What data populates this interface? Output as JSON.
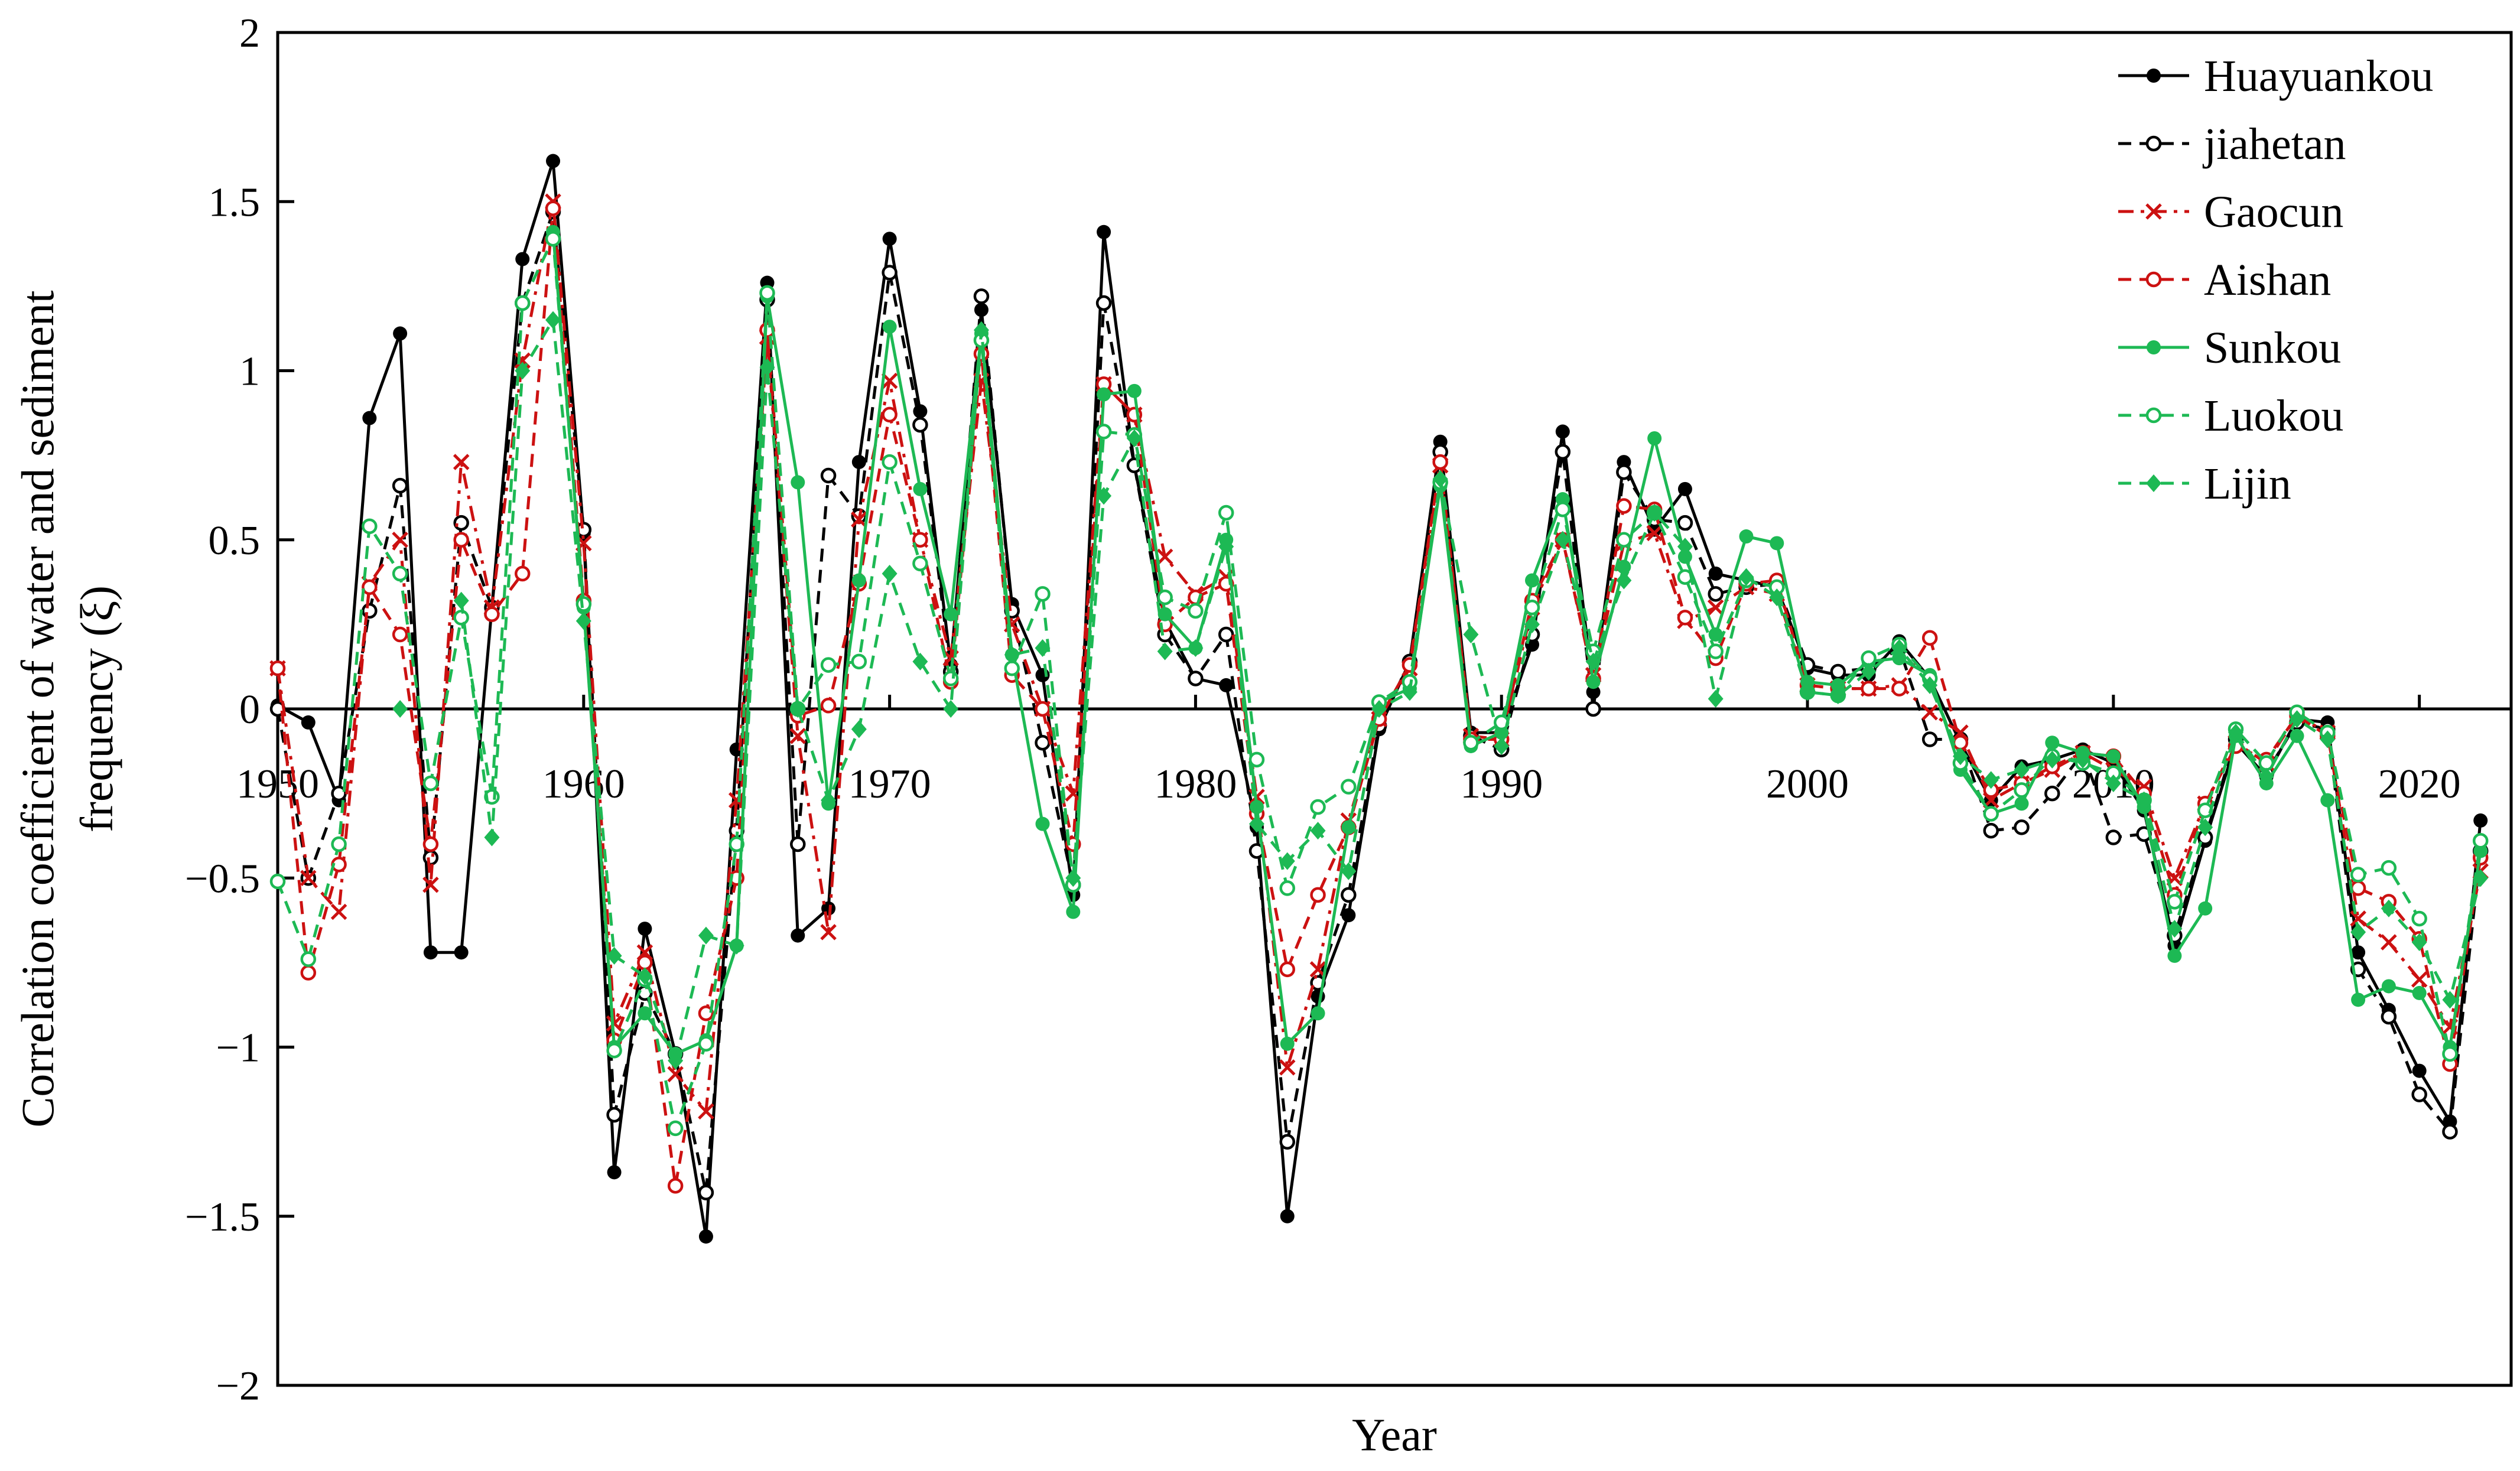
{
  "chart_data": {
    "type": "line",
    "xlabel": "Year",
    "ylabel": "Correlation coefficient of water and sediment frequency (ξ)",
    "xlim": [
      1950,
      2023
    ],
    "ylim": [
      -2,
      2
    ],
    "xticks": [
      "1950",
      "1960",
      "1970",
      "1980",
      "1990",
      "2000",
      "2010",
      "2020"
    ],
    "yticks": [
      "2",
      "1.5",
      "1",
      "0.5",
      "0",
      "−0.5",
      "−1",
      "−1.5",
      "−2"
    ],
    "legend_position": "top-right",
    "grid": false,
    "x": [
      1950,
      1951,
      1952,
      1953,
      1954,
      1955,
      1956,
      1957,
      1958,
      1959,
      1960,
      1961,
      1962,
      1963,
      1964,
      1965,
      1966,
      1967,
      1968,
      1969,
      1970,
      1971,
      1972,
      1973,
      1974,
      1975,
      1976,
      1977,
      1978,
      1979,
      1980,
      1981,
      1982,
      1983,
      1984,
      1985,
      1986,
      1987,
      1988,
      1989,
      1990,
      1991,
      1992,
      1993,
      1994,
      1995,
      1996,
      1997,
      1998,
      1999,
      2000,
      2001,
      2002,
      2003,
      2004,
      2005,
      2006,
      2007,
      2008,
      2009,
      2010,
      2011,
      2012,
      2013,
      2014,
      2015,
      2016,
      2017,
      2018,
      2019,
      2020,
      2021,
      2022,
      2023
    ],
    "series": [
      {
        "name": "Huayuankou",
        "color": "#000000",
        "style": "solid",
        "marker": "filled-circle",
        "values": [
          0.01,
          -0.04,
          -0.27,
          0.86,
          1.11,
          -0.72,
          -0.72,
          0.3,
          1.33,
          1.62,
          0.52,
          -1.37,
          -0.65,
          -1.02,
          -1.56,
          -0.12,
          1.26,
          -0.67,
          -0.59,
          0.73,
          1.39,
          0.88,
          0.13,
          1.18,
          0.31,
          0.1,
          -0.55,
          1.41,
          0.72,
          0.26,
          0.09,
          0.07,
          -0.35,
          -1.5,
          -0.85,
          -0.61,
          -0.06,
          0.14,
          0.79,
          -0.07,
          -0.07,
          0.19,
          0.82,
          0.05,
          0.73,
          0.53,
          0.65,
          0.4,
          0.38,
          0.36,
          0.12,
          0.1,
          0.1,
          0.2,
          0.09,
          -0.1,
          -0.27,
          -0.17,
          -0.15,
          -0.12,
          -0.16,
          -0.3,
          -0.7,
          -0.39,
          -0.1,
          -0.2,
          -0.03,
          -0.04,
          -0.72,
          -0.89,
          -1.07,
          -1.22,
          -0.33,
          null
        ]
      },
      {
        "name": "jiahetan",
        "color": "#000000",
        "style": "dashed",
        "marker": "open-circle",
        "values": [
          0.0,
          -0.5,
          -0.25,
          0.29,
          0.66,
          -0.44,
          0.55,
          0.3,
          1.2,
          1.47,
          0.53,
          -1.2,
          -0.84,
          -1.02,
          -1.43,
          -0.36,
          1.21,
          -0.4,
          0.69,
          0.57,
          1.29,
          0.84,
          0.11,
          1.22,
          0.29,
          -0.1,
          -0.52,
          1.2,
          0.72,
          0.22,
          0.09,
          0.22,
          -0.42,
          -1.28,
          -0.81,
          -0.55,
          -0.05,
          0.14,
          0.76,
          -0.08,
          -0.12,
          0.22,
          0.76,
          0.0,
          0.7,
          0.56,
          0.55,
          0.34,
          0.36,
          0.37,
          0.13,
          0.11,
          0.12,
          0.18,
          -0.09,
          -0.09,
          -0.36,
          -0.35,
          -0.25,
          -0.13,
          -0.38,
          -0.37,
          -0.67,
          -0.38,
          -0.09,
          -0.19,
          -0.04,
          -0.06,
          -0.77,
          -0.91,
          -1.14,
          -1.25,
          -0.42,
          null
        ]
      },
      {
        "name": "Gaocun",
        "color": "#cc1111",
        "style": "dashdot",
        "marker": "cross",
        "values": [
          0.12,
          -0.5,
          -0.6,
          0.37,
          0.5,
          -0.52,
          0.73,
          0.3,
          1.03,
          1.5,
          0.49,
          -0.93,
          -0.72,
          -1.08,
          -1.19,
          -0.27,
          1.1,
          -0.08,
          -0.66,
          0.56,
          0.97,
          0.5,
          0.15,
          0.97,
          0.25,
          0.0,
          -0.25,
          0.96,
          0.87,
          0.45,
          0.34,
          0.39,
          -0.26,
          -1.06,
          -0.77,
          -0.33,
          -0.03,
          0.12,
          0.72,
          -0.08,
          -0.09,
          0.3,
          0.5,
          0.1,
          0.49,
          0.52,
          0.26,
          0.3,
          0.36,
          0.34,
          0.07,
          0.06,
          0.06,
          0.07,
          -0.01,
          -0.07,
          -0.27,
          -0.22,
          -0.18,
          -0.13,
          -0.18,
          -0.23,
          -0.5,
          -0.28,
          -0.1,
          -0.16,
          -0.02,
          -0.07,
          -0.62,
          -0.69,
          -0.8,
          -0.94,
          -0.48,
          null
        ]
      },
      {
        "name": "Aishan",
        "color": "#cc1111",
        "style": "dashed",
        "marker": "open-circle",
        "values": [
          0.12,
          -0.78,
          -0.46,
          0.36,
          0.22,
          -0.4,
          0.5,
          0.28,
          0.4,
          1.48,
          0.32,
          -0.98,
          -0.75,
          -1.41,
          -0.9,
          -0.5,
          1.12,
          -0.02,
          0.01,
          0.37,
          0.87,
          0.5,
          0.08,
          1.05,
          0.1,
          0.0,
          -0.4,
          0.96,
          0.87,
          0.25,
          0.33,
          0.37,
          -0.31,
          -0.77,
          -0.55,
          -0.35,
          -0.03,
          0.13,
          0.73,
          -0.09,
          -0.09,
          0.32,
          0.5,
          0.09,
          0.6,
          0.59,
          0.27,
          0.15,
          0.37,
          0.38,
          0.07,
          0.06,
          0.06,
          0.06,
          0.21,
          -0.1,
          -0.24,
          -0.22,
          -0.17,
          -0.13,
          -0.14,
          -0.25,
          -0.55,
          -0.28,
          -0.11,
          -0.15,
          -0.02,
          -0.08,
          -0.53,
          -0.57,
          -0.68,
          -1.05,
          -0.44,
          null
        ]
      },
      {
        "name": "Sunkou",
        "color": "#1db954",
        "style": "solid",
        "marker": "filled-circle",
        "values": [
          null,
          null,
          null,
          null,
          null,
          null,
          null,
          null,
          null,
          1.41,
          0.3,
          -1.0,
          -0.9,
          -1.02,
          -0.98,
          -0.7,
          1.22,
          0.67,
          -0.28,
          0.38,
          1.13,
          0.65,
          0.28,
          1.11,
          0.16,
          -0.34,
          -0.6,
          0.93,
          0.94,
          0.28,
          0.18,
          0.5,
          -0.29,
          -0.99,
          -0.9,
          -0.35,
          0.02,
          0.06,
          0.66,
          -0.11,
          -0.07,
          0.38,
          0.62,
          0.08,
          0.42,
          0.8,
          0.45,
          0.22,
          0.51,
          0.49,
          0.08,
          0.07,
          0.14,
          0.15,
          0.1,
          -0.18,
          -0.31,
          -0.28,
          -0.1,
          -0.13,
          -0.14,
          -0.29,
          -0.73,
          -0.59,
          -0.08,
          -0.22,
          -0.08,
          -0.27,
          -0.86,
          -0.82,
          -0.84,
          -1.0,
          -0.42,
          null
        ]
      },
      {
        "name": "Luokou",
        "color": "#1db954",
        "style": "dashed",
        "marker": "open-circle",
        "values": [
          -0.51,
          -0.74,
          -0.4,
          0.54,
          0.4,
          -0.22,
          0.27,
          -0.26,
          1.2,
          1.39,
          0.31,
          -1.01,
          -0.8,
          -1.24,
          -0.99,
          -0.4,
          1.23,
          0.0,
          0.13,
          0.14,
          0.73,
          0.43,
          0.09,
          1.09,
          0.12,
          0.34,
          -0.52,
          0.82,
          0.81,
          0.33,
          0.29,
          0.58,
          -0.15,
          -0.53,
          -0.29,
          -0.23,
          0.02,
          0.08,
          0.67,
          -0.1,
          -0.04,
          0.3,
          0.59,
          0.17,
          0.5,
          0.58,
          0.39,
          0.17,
          0.38,
          0.36,
          0.05,
          0.04,
          0.15,
          0.19,
          0.09,
          -0.16,
          -0.31,
          -0.24,
          -0.14,
          -0.16,
          -0.19,
          -0.27,
          -0.57,
          -0.3,
          -0.06,
          -0.16,
          -0.01,
          -0.07,
          -0.49,
          -0.47,
          -0.62,
          -1.02,
          -0.39,
          null
        ]
      },
      {
        "name": "Lijin",
        "color": "#1db954",
        "style": "dashed",
        "marker": "filled-diamond",
        "values": [
          null,
          null,
          null,
          null,
          0.0,
          null,
          0.32,
          -0.38,
          1.0,
          1.15,
          0.26,
          -0.73,
          -0.79,
          -1.04,
          -0.67,
          -0.7,
          1.01,
          0.0,
          -0.27,
          -0.06,
          0.4,
          0.14,
          0.0,
          1.12,
          0.16,
          0.18,
          -0.5,
          0.63,
          0.8,
          0.17,
          0.18,
          0.48,
          -0.34,
          -0.45,
          -0.36,
          -0.48,
          0.0,
          0.05,
          0.68,
          0.22,
          -0.11,
          0.25,
          0.5,
          0.14,
          0.38,
          0.58,
          0.48,
          0.03,
          0.39,
          0.33,
          0.05,
          0.04,
          0.11,
          0.18,
          0.07,
          -0.14,
          -0.21,
          -0.18,
          -0.15,
          -0.15,
          -0.22,
          -0.27,
          -0.65,
          -0.35,
          -0.07,
          -0.2,
          -0.03,
          -0.09,
          -0.66,
          -0.59,
          -0.69,
          -0.86,
          -0.5,
          null
        ]
      }
    ]
  }
}
